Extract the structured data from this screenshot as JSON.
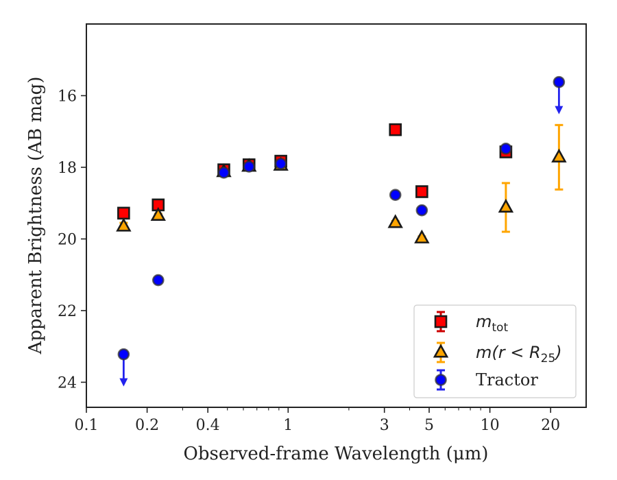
{
  "chart_data": {
    "type": "scatter",
    "xlabel": "Observed-frame Wavelength (μm)",
    "ylabel": "Apparent Brightness (AB mag)",
    "xscale": "log",
    "xlim": [
      0.1,
      30
    ],
    "ylim": [
      24.7,
      14.0
    ],
    "yaxis_inverted": true,
    "xticks": [
      {
        "value": 0.1,
        "label": "0.1"
      },
      {
        "value": 0.2,
        "label": "0.2"
      },
      {
        "value": 0.4,
        "label": "0.4"
      },
      {
        "value": 1,
        "label": "1"
      },
      {
        "value": 3,
        "label": "3"
      },
      {
        "value": 5,
        "label": "5"
      },
      {
        "value": 10,
        "label": "10"
      },
      {
        "value": 20,
        "label": "20"
      }
    ],
    "yticks": [
      {
        "value": 16,
        "label": "16"
      },
      {
        "value": 18,
        "label": "18"
      },
      {
        "value": 20,
        "label": "20"
      },
      {
        "value": 22,
        "label": "22"
      },
      {
        "value": 24,
        "label": "24"
      }
    ],
    "grid": false,
    "legend_position": "lower-right",
    "series": [
      {
        "name": "m_tot",
        "legend_main": "m",
        "legend_sub": "tot",
        "marker": "square",
        "face_color": "#ff0000",
        "error_color": "#cc0000",
        "points": [
          {
            "x": 0.153,
            "y": 19.28,
            "err": 0.05
          },
          {
            "x": 0.227,
            "y": 19.05,
            "err": 0.05
          },
          {
            "x": 0.48,
            "y": 18.07,
            "err": 0.05
          },
          {
            "x": 0.64,
            "y": 17.93,
            "err": 0.05
          },
          {
            "x": 0.92,
            "y": 17.83,
            "err": 0.05
          },
          {
            "x": 3.4,
            "y": 16.95,
            "err": 0.05
          },
          {
            "x": 4.6,
            "y": 18.68,
            "err": 0.05
          },
          {
            "x": 12.0,
            "y": 17.57,
            "err": 0.1
          }
        ]
      },
      {
        "name": "m(r < R_25)",
        "legend_main": "m(r < R",
        "legend_sub": "25",
        "legend_tail": ")",
        "marker": "triangle",
        "face_color": "#ffa500",
        "error_color": "#ffa500",
        "points": [
          {
            "x": 0.153,
            "y": 19.65,
            "err": 0.1
          },
          {
            "x": 0.227,
            "y": 19.35,
            "err": 0.05
          },
          {
            "x": 0.48,
            "y": 18.13,
            "err": 0.05
          },
          {
            "x": 0.64,
            "y": 17.98,
            "err": 0.05
          },
          {
            "x": 0.92,
            "y": 17.95,
            "err": 0.05
          },
          {
            "x": 3.4,
            "y": 19.55,
            "err": 0.05
          },
          {
            "x": 4.6,
            "y": 19.98,
            "err": 0.05
          },
          {
            "x": 12.0,
            "y": 19.12,
            "err": 0.68
          },
          {
            "x": 22.0,
            "y": 17.72,
            "err": 0.9
          }
        ]
      },
      {
        "name": "Tractor",
        "legend_main": "Tractor",
        "marker": "circle",
        "face_color": "#0000ff",
        "error_color": "#2222ee",
        "points": [
          {
            "x": 0.153,
            "y": 23.22,
            "upper_limit": true
          },
          {
            "x": 0.227,
            "y": 21.15
          },
          {
            "x": 0.48,
            "y": 18.15
          },
          {
            "x": 0.64,
            "y": 17.98
          },
          {
            "x": 0.92,
            "y": 17.9
          },
          {
            "x": 3.4,
            "y": 18.77
          },
          {
            "x": 4.6,
            "y": 19.2
          },
          {
            "x": 12.0,
            "y": 17.48
          },
          {
            "x": 22.0,
            "y": 15.62,
            "upper_limit": true
          }
        ]
      }
    ]
  }
}
